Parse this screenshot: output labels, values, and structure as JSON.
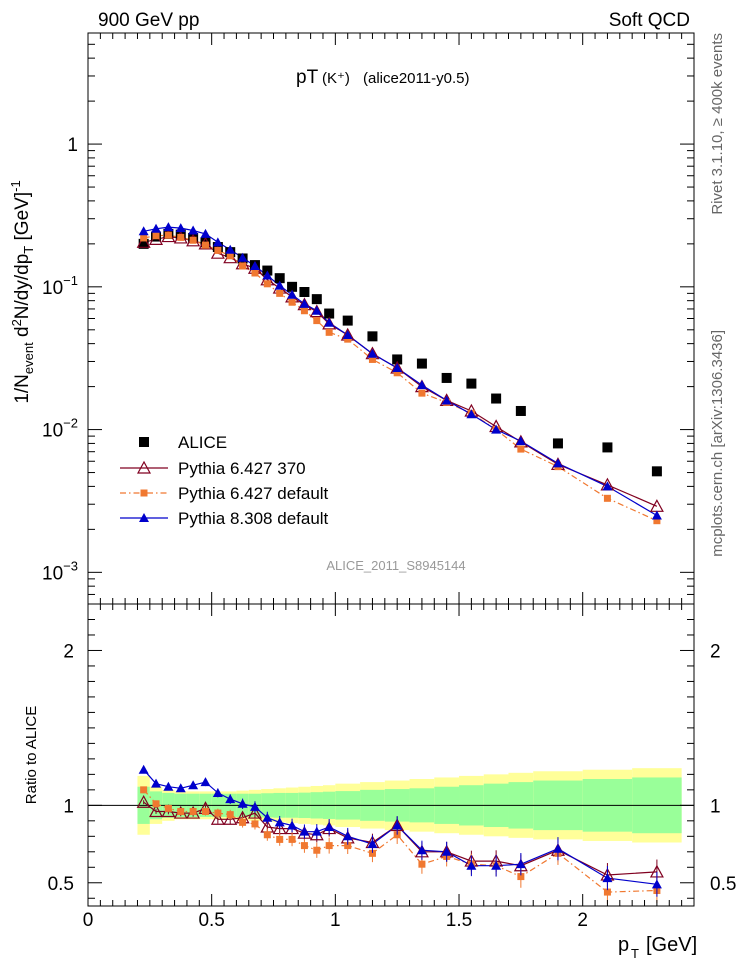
{
  "header": {
    "left": "900 GeV pp",
    "right": "Soft QCD"
  },
  "side_labels": {
    "rivet": "Rivet 3.1.10, ≥ 400k events",
    "mcplots": "mcplots.cern.ch [arXiv:1306.3436]"
  },
  "chart_data": {
    "type": "scatter",
    "title_main": "pT",
    "title_particle": "(K⁺)",
    "title_tag": "(alice2011-y0.5)",
    "watermark": "ALICE_2011_S8945144",
    "xlabel": "p",
    "xlabel_sub": "T",
    "xlabel_unit": "[GeV]",
    "ylabel": "1/N_event d²N/dy/dp_T [GeV]⁻¹",
    "ratio_ylabel": "Ratio to ALICE",
    "xlim": [
      0,
      2.45
    ],
    "ylim_main": [
      0.0006,
      6
    ],
    "yscale_main": "log",
    "ylim_ratio": [
      0.35,
      2.3
    ],
    "x_ticks": [
      "0",
      "0.5",
      "1",
      "1.5",
      "2"
    ],
    "main_y_ticks": [
      {
        "base": "1",
        "exp": ""
      },
      {
        "base": "10",
        "exp": "−1"
      },
      {
        "base": "10",
        "exp": "−2"
      },
      {
        "base": "10",
        "exp": "−3"
      }
    ],
    "ratio_y_ticks": [
      "0.5",
      "1",
      "2"
    ],
    "x": [
      0.225,
      0.275,
      0.325,
      0.375,
      0.425,
      0.475,
      0.525,
      0.575,
      0.625,
      0.675,
      0.725,
      0.775,
      0.825,
      0.875,
      0.925,
      0.975,
      1.05,
      1.15,
      1.25,
      1.35,
      1.45,
      1.55,
      1.65,
      1.75,
      1.9,
      2.1,
      2.3
    ],
    "band_x_edges": [
      0.2,
      0.25,
      0.3,
      0.35,
      0.4,
      0.45,
      0.5,
      0.55,
      0.6,
      0.65,
      0.7,
      0.75,
      0.8,
      0.85,
      0.9,
      0.95,
      1.0,
      1.1,
      1.2,
      1.3,
      1.4,
      1.5,
      1.6,
      1.7,
      1.8,
      2.0,
      2.2,
      2.4
    ],
    "band_inner": [
      0.12,
      0.09,
      0.08,
      0.075,
      0.075,
      0.075,
      0.075,
      0.075,
      0.075,
      0.075,
      0.078,
      0.08,
      0.08,
      0.082,
      0.085,
      0.088,
      0.092,
      0.1,
      0.105,
      0.11,
      0.12,
      0.13,
      0.14,
      0.15,
      0.16,
      0.17,
      0.18
    ],
    "band_outer": [
      0.19,
      0.12,
      0.1,
      0.09,
      0.09,
      0.09,
      0.09,
      0.09,
      0.095,
      0.1,
      0.105,
      0.11,
      0.115,
      0.12,
      0.125,
      0.13,
      0.14,
      0.15,
      0.16,
      0.17,
      0.18,
      0.19,
      0.2,
      0.21,
      0.22,
      0.23,
      0.24
    ],
    "series": [
      {
        "name": "ALICE",
        "color": "#000000",
        "marker": "square-filled",
        "line": "none",
        "values": [
          0.2,
          0.225,
          0.235,
          0.232,
          0.22,
          0.205,
          0.19,
          0.175,
          0.158,
          0.142,
          0.13,
          0.115,
          0.1,
          0.092,
          0.082,
          0.065,
          0.058,
          0.045,
          0.031,
          0.029,
          0.023,
          0.021,
          0.0165,
          0.0135,
          0.008,
          0.0075,
          0.0051
        ],
        "ratio": [
          1,
          1,
          1,
          1,
          1,
          1,
          1,
          1,
          1,
          1,
          1,
          1,
          1,
          1,
          1,
          1,
          1,
          1,
          1,
          1,
          1,
          1,
          1,
          1,
          1,
          1,
          1
        ]
      },
      {
        "name": "Pythia 6.427 370",
        "color": "#800020",
        "marker": "triangle-open",
        "line": "solid",
        "values": [
          0.205,
          0.215,
          0.225,
          0.22,
          0.21,
          0.2,
          0.172,
          0.16,
          0.145,
          0.135,
          0.112,
          0.098,
          0.085,
          0.075,
          0.067,
          0.055,
          0.046,
          0.034,
          0.027,
          0.02,
          0.016,
          0.0135,
          0.0105,
          0.0082,
          0.0057,
          0.0041,
          0.0029
        ],
        "ratio": [
          1.02,
          0.96,
          0.96,
          0.95,
          0.95,
          0.98,
          0.91,
          0.91,
          0.92,
          0.95,
          0.86,
          0.85,
          0.85,
          0.82,
          0.81,
          0.85,
          0.79,
          0.76,
          0.87,
          0.7,
          0.7,
          0.64,
          0.64,
          0.61,
          0.71,
          0.55,
          0.57
        ]
      },
      {
        "name": "Pythia 6.427 default",
        "color": "#F07830",
        "marker": "square-filled-small",
        "line": "dashdot",
        "values": [
          0.22,
          0.228,
          0.23,
          0.222,
          0.212,
          0.196,
          0.18,
          0.165,
          0.14,
          0.125,
          0.105,
          0.09,
          0.078,
          0.068,
          0.058,
          0.048,
          0.043,
          0.031,
          0.025,
          0.018,
          0.0155,
          0.013,
          0.01,
          0.0073,
          0.0055,
          0.0033,
          0.0023
        ],
        "ratio": [
          1.1,
          1.01,
          0.98,
          0.96,
          0.96,
          0.96,
          0.95,
          0.94,
          0.89,
          0.88,
          0.81,
          0.78,
          0.78,
          0.74,
          0.71,
          0.74,
          0.74,
          0.69,
          0.81,
          0.62,
          0.67,
          0.62,
          0.61,
          0.54,
          0.69,
          0.44,
          0.45
        ]
      },
      {
        "name": "Pythia 8.308 default",
        "color": "#0000CC",
        "marker": "triangle-filled",
        "line": "solid",
        "values": [
          0.245,
          0.255,
          0.262,
          0.258,
          0.248,
          0.235,
          0.205,
          0.182,
          0.16,
          0.14,
          0.12,
          0.102,
          0.088,
          0.076,
          0.068,
          0.056,
          0.046,
          0.034,
          0.027,
          0.0205,
          0.016,
          0.0128,
          0.01,
          0.0083,
          0.0058,
          0.004,
          0.0025
        ],
        "ratio": [
          1.23,
          1.14,
          1.12,
          1.11,
          1.13,
          1.15,
          1.08,
          1.04,
          1.01,
          0.99,
          0.92,
          0.89,
          0.87,
          0.83,
          0.83,
          0.86,
          0.8,
          0.75,
          0.87,
          0.71,
          0.7,
          0.61,
          0.61,
          0.62,
          0.72,
          0.53,
          0.49
        ]
      }
    ]
  }
}
